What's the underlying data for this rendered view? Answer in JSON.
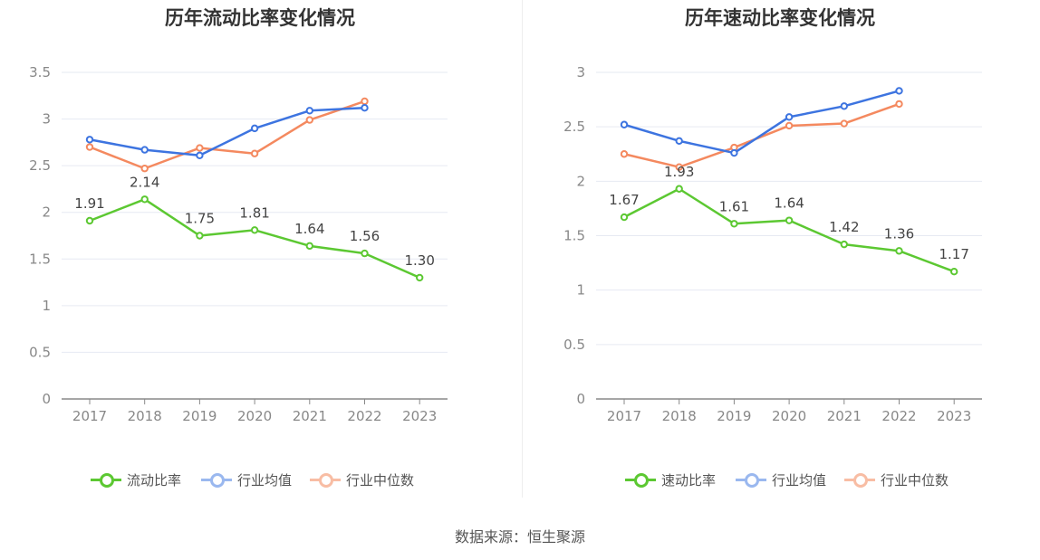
{
  "footer": {
    "source": "数据来源：恒生聚源"
  },
  "charts": [
    {
      "id": "left",
      "legend": [
        "流动比率",
        "行业均值",
        "行业中位数"
      ],
      "chart_data": {
        "type": "line",
        "title": "历年流动比率变化情况",
        "categories": [
          "2017",
          "2018",
          "2019",
          "2020",
          "2021",
          "2022",
          "2023"
        ],
        "ylim": [
          0,
          3.5
        ],
        "yticks": [
          0,
          0.5,
          1,
          1.5,
          2,
          2.5,
          3,
          3.5
        ],
        "ytick_labels": [
          "0",
          "0.5",
          "1",
          "1.5",
          "2",
          "2.5",
          "3",
          "3.5"
        ],
        "grid": true,
        "legend_position": "bottom",
        "series": [
          {
            "name": "流动比率",
            "color": "#5cc832",
            "values": [
              1.91,
              2.14,
              1.75,
              1.81,
              1.64,
              1.56,
              1.3
            ],
            "labels": [
              "1.91",
              "2.14",
              "1.75",
              "1.81",
              "1.64",
              "1.56",
              "1.30"
            ]
          },
          {
            "name": "行业均值",
            "color": "#3d74e0",
            "values": [
              2.78,
              2.67,
              2.61,
              2.9,
              3.09,
              3.12,
              null
            ]
          },
          {
            "name": "行业中位数",
            "color": "#f4895f",
            "values": [
              2.7,
              2.47,
              2.69,
              2.63,
              2.99,
              3.19,
              null
            ]
          }
        ]
      }
    },
    {
      "id": "right",
      "legend": [
        "速动比率",
        "行业均值",
        "行业中位数"
      ],
      "chart_data": {
        "type": "line",
        "title": "历年速动比率变化情况",
        "categories": [
          "2017",
          "2018",
          "2019",
          "2020",
          "2021",
          "2022",
          "2023"
        ],
        "ylim": [
          0,
          3
        ],
        "yticks": [
          0,
          0.5,
          1,
          1.5,
          2,
          2.5,
          3
        ],
        "ytick_labels": [
          "0",
          "0.5",
          "1",
          "1.5",
          "2",
          "2.5",
          "3"
        ],
        "grid": true,
        "legend_position": "bottom",
        "series": [
          {
            "name": "速动比率",
            "color": "#5cc832",
            "values": [
              1.67,
              1.93,
              1.61,
              1.64,
              1.42,
              1.36,
              1.17
            ],
            "labels": [
              "1.67",
              "1.93",
              "1.61",
              "1.64",
              "1.42",
              "1.36",
              "1.17"
            ]
          },
          {
            "name": "行业均值",
            "color": "#3d74e0",
            "values": [
              2.52,
              2.37,
              2.26,
              2.59,
              2.69,
              2.83,
              null
            ]
          },
          {
            "name": "行业中位数",
            "color": "#f4895f",
            "values": [
              2.25,
              2.13,
              2.31,
              2.51,
              2.53,
              2.71,
              null
            ]
          }
        ]
      }
    }
  ]
}
